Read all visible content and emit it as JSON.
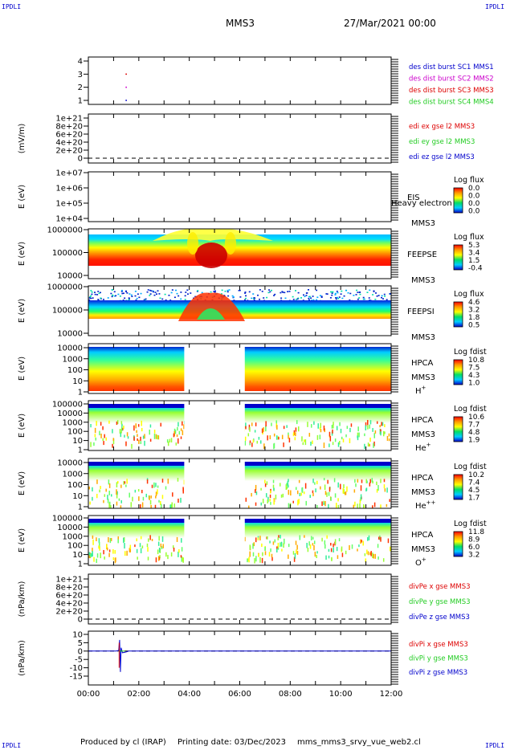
{
  "corners": {
    "tl": "IPDLI",
    "tr": "IPDLI",
    "bl": "IPDLI",
    "br": "IPDLI"
  },
  "header": {
    "spacecraft": "MMS3",
    "date": "27/Mar/2021 00:00"
  },
  "footer": {
    "produced": "Produced by cl (IRAP)",
    "printing": "Printing date: 03/Dec/2023",
    "file": "mms_mms3_srvy_vue_web2.cl"
  },
  "colors": {
    "blue": "#0000cc",
    "magenta": "#cc00cc",
    "red": "#dd0000",
    "green": "#22cc22"
  },
  "chart_data": [
    {
      "id": "p1",
      "type": "scatter",
      "yticks": [
        "1",
        "2",
        "3",
        "4"
      ],
      "ylim": [
        0.5,
        4.5
      ],
      "legend": [
        {
          "text": "des dist burst SC1 MMS1",
          "color": "#0000cc"
        },
        {
          "text": "des dist burst SC2 MMS2",
          "color": "#cc00cc"
        },
        {
          "text": "des dist burst SC3 MMS3",
          "color": "#dd0000"
        },
        {
          "text": "des dist burst SC4 MMS4",
          "color": "#22cc22"
        }
      ],
      "points": [
        {
          "t": 1.5,
          "y": 1,
          "color": "#0000cc"
        },
        {
          "t": 1.5,
          "y": 2,
          "color": "#cc00cc"
        },
        {
          "t": 1.5,
          "y": 3,
          "color": "#dd0000"
        }
      ]
    },
    {
      "id": "p2",
      "type": "line",
      "ylabel": "(mV/m)",
      "yticks": [
        "0",
        "2e+20",
        "4e+20",
        "6e+20",
        "8e+20",
        "1e+21"
      ],
      "legend": [
        {
          "text": "edi ex gse l2 MMS3",
          "color": "#dd0000"
        },
        {
          "text": "edi ey gse l2 MMS3",
          "color": "#22cc22"
        },
        {
          "text": "edi ez gse l2 MMS3",
          "color": "#0000cc"
        }
      ]
    },
    {
      "id": "p3",
      "type": "heatmap",
      "ylabel": "E (eV)",
      "yticks": [
        "1e+04",
        "1e+05",
        "1e+06",
        "1e+07"
      ],
      "labels": [
        "EIS",
        "MMS3"
      ],
      "overlay": "Heavy electron to",
      "scale_title": "Log flux",
      "scale": [
        "0.0",
        "0.0",
        "0.0",
        "0.0"
      ]
    },
    {
      "id": "p4",
      "type": "heatmap",
      "ylabel": "E (eV)",
      "yticks": [
        "10000",
        "100000",
        "1000000"
      ],
      "labels": [
        "FEEPSE",
        "MMS3"
      ],
      "scale_title": "Log flux",
      "scale": [
        "5.3",
        "3.4",
        "1.5",
        "-0.4"
      ]
    },
    {
      "id": "p5",
      "type": "heatmap",
      "ylabel": "E (eV)",
      "yticks": [
        "10000",
        "100000",
        "1000000"
      ],
      "labels": [
        "FEEPSI",
        "MMS3"
      ],
      "scale_title": "Log flux",
      "scale": [
        "4.6",
        "3.2",
        "1.8",
        "0.5"
      ]
    },
    {
      "id": "p6",
      "type": "heatmap",
      "ylabel": "E (eV)",
      "yticks": [
        "1",
        "10",
        "100",
        "1000",
        "10000"
      ],
      "labels": [
        "HPCA",
        "MMS3"
      ],
      "species": "H",
      "sup": "+",
      "scale_title": "Log fdist",
      "scale": [
        "10.8",
        "7.5",
        "4.3",
        "1.0"
      ],
      "gap": [
        3.8,
        6.2
      ]
    },
    {
      "id": "p7",
      "type": "heatmap",
      "ylabel": "E (eV)",
      "yticks": [
        "1",
        "10",
        "100",
        "1000",
        "10000",
        "100000"
      ],
      "labels": [
        "HPCA",
        "MMS3"
      ],
      "species": "He",
      "sup": "+",
      "scale_title": "Log fdist",
      "scale": [
        "10.6",
        "7.7",
        "4.8",
        "1.9"
      ],
      "gap": [
        3.8,
        6.2
      ]
    },
    {
      "id": "p8",
      "type": "heatmap",
      "ylabel": "E (eV)",
      "yticks": [
        "1",
        "10",
        "100",
        "1000",
        "10000"
      ],
      "labels": [
        "HPCA",
        "MMS3"
      ],
      "species": "He",
      "sup": "++",
      "scale_title": "Log fdist",
      "scale": [
        "10.2",
        "7.4",
        "4.5",
        "1.7"
      ],
      "gap": [
        3.8,
        6.2
      ]
    },
    {
      "id": "p9",
      "type": "heatmap",
      "ylabel": "E (eV)",
      "yticks": [
        "1",
        "10",
        "100",
        "1000",
        "10000",
        "100000"
      ],
      "labels": [
        "HPCA",
        "MMS3"
      ],
      "species": "O",
      "sup": "+",
      "scale_title": "Log fdist",
      "scale": [
        "11.8",
        "8.9",
        "6.0",
        "3.2"
      ],
      "gap": [
        3.8,
        6.2
      ]
    },
    {
      "id": "p10",
      "type": "line",
      "ylabel": "(nPa/km)",
      "yticks": [
        "0",
        "2e+20",
        "4e+20",
        "6e+20",
        "8e+20",
        "1e+21"
      ],
      "legend": [
        {
          "text": "divPe x gse MMS3",
          "color": "#dd0000"
        },
        {
          "text": "divPe y gse MMS3",
          "color": "#22cc22"
        },
        {
          "text": "divPe z gse MMS3",
          "color": "#0000cc"
        }
      ]
    },
    {
      "id": "p11",
      "type": "line",
      "ylabel": "(nPa/km)",
      "yticks": [
        "-15",
        "-10",
        "-5",
        "0",
        "5",
        "10"
      ],
      "ylim": [
        -17,
        11
      ],
      "legend": [
        {
          "text": "divPi x gse MMS3",
          "color": "#dd0000"
        },
        {
          "text": "divPi y gse MMS3",
          "color": "#22cc22"
        },
        {
          "text": "divPi z gse MMS3",
          "color": "#0000cc"
        }
      ],
      "series_z": [
        [
          0,
          0
        ],
        [
          1.1,
          0
        ],
        [
          1.2,
          0.3
        ],
        [
          1.24,
          6.7
        ],
        [
          1.27,
          -12.5
        ],
        [
          1.3,
          2
        ],
        [
          1.35,
          -1
        ],
        [
          1.5,
          -0.5
        ],
        [
          1.6,
          0
        ],
        [
          1.8,
          0
        ],
        [
          3.0,
          0
        ],
        [
          10.0,
          0
        ],
        [
          12.0,
          0
        ]
      ]
    }
  ],
  "xaxis": {
    "ticks": [
      "00:00",
      "02:00",
      "04:00",
      "06:00",
      "08:00",
      "10:00",
      "12:00"
    ],
    "range": [
      0,
      12
    ]
  }
}
